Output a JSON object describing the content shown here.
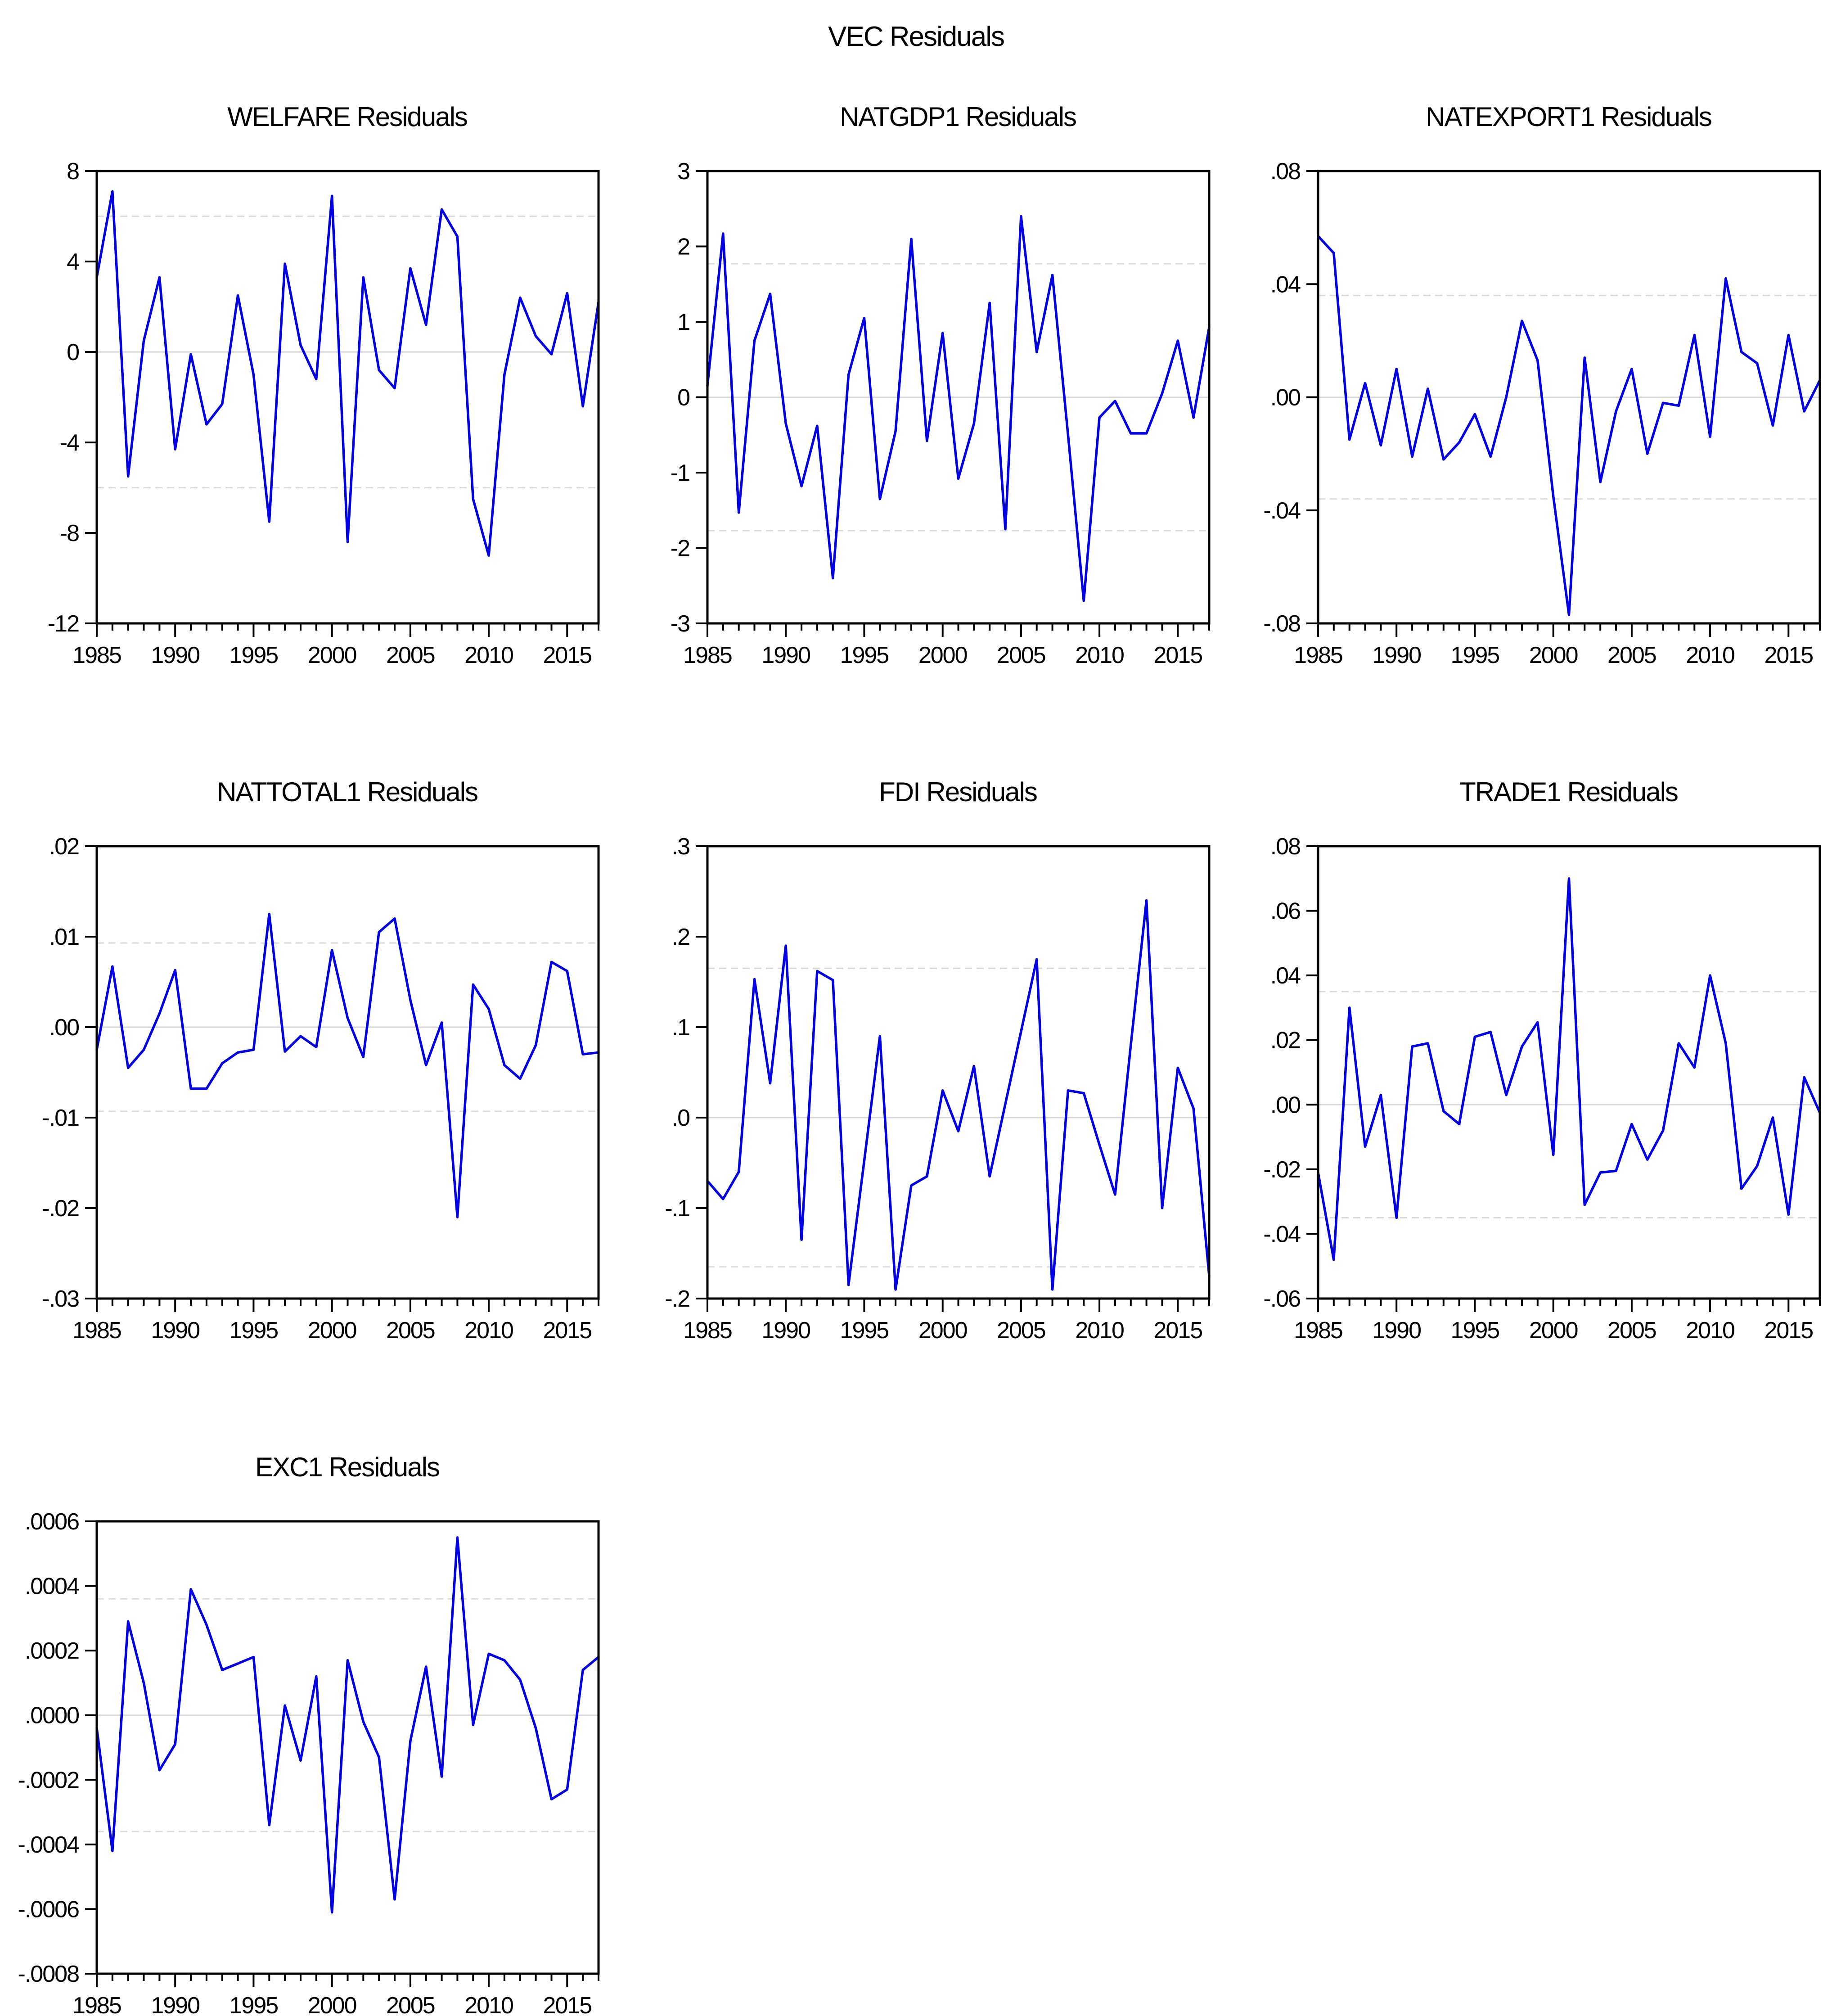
{
  "title": "VEC Residuals",
  "colors": {
    "line": "#0000E8",
    "gridline": "#D6D6D6",
    "band_dashed": "#DADADA",
    "axis": "#000000",
    "background": "#FFFFFF"
  },
  "chart_data": [
    {
      "type": "line",
      "title": "WELFARE Residuals",
      "x_start": 1985,
      "x_end": 2017,
      "ylim": [
        -12,
        8
      ],
      "band": 6.0,
      "grid": {
        "zero_line": true,
        "dashed_bands": true
      },
      "yticks": [
        {
          "v": 8,
          "t": "8"
        },
        {
          "v": 4,
          "t": "4"
        },
        {
          "v": 0,
          "t": "0"
        },
        {
          "v": -4,
          "t": "-4"
        },
        {
          "v": -8,
          "t": "-8"
        },
        {
          "v": -12,
          "t": "-12"
        }
      ],
      "xticks": [
        {
          "v": 1985,
          "t": "1985"
        },
        {
          "v": 1990,
          "t": "1990"
        },
        {
          "v": 1995,
          "t": "1995"
        },
        {
          "v": 2000,
          "t": "2000"
        },
        {
          "v": 2005,
          "t": "2005"
        },
        {
          "v": 2010,
          "t": "2010"
        },
        {
          "v": 2015,
          "t": "2015"
        }
      ],
      "values": [
        3.3,
        7.1,
        -5.5,
        0.5,
        3.3,
        -4.3,
        -0.1,
        -3.2,
        -2.3,
        2.5,
        -1.0,
        -7.5,
        3.9,
        0.3,
        -1.2,
        6.9,
        -8.4,
        3.3,
        -0.8,
        -1.6,
        3.7,
        1.2,
        6.3,
        5.1,
        -6.5,
        -9.0,
        -1.0,
        2.4,
        0.7,
        -0.1,
        2.6,
        -2.4,
        2.2
      ]
    },
    {
      "type": "line",
      "title": "NATGDP1 Residuals",
      "x_start": 1985,
      "x_end": 2017,
      "ylim": [
        -3,
        3
      ],
      "band": 1.77,
      "grid": {
        "zero_line": true,
        "dashed_bands": true
      },
      "yticks": [
        {
          "v": 3,
          "t": "3"
        },
        {
          "v": 2,
          "t": "2"
        },
        {
          "v": 1,
          "t": "1"
        },
        {
          "v": 0,
          "t": "0"
        },
        {
          "v": -1,
          "t": "-1"
        },
        {
          "v": -2,
          "t": "-2"
        },
        {
          "v": -3,
          "t": "-3"
        }
      ],
      "xticks": [
        {
          "v": 1985,
          "t": "1985"
        },
        {
          "v": 1990,
          "t": "1990"
        },
        {
          "v": 1995,
          "t": "1995"
        },
        {
          "v": 2000,
          "t": "2000"
        },
        {
          "v": 2005,
          "t": "2005"
        },
        {
          "v": 2010,
          "t": "2010"
        },
        {
          "v": 2015,
          "t": "2015"
        }
      ],
      "values": [
        0.15,
        2.17,
        -1.53,
        0.75,
        1.37,
        -0.35,
        -1.18,
        -0.38,
        -2.4,
        0.3,
        1.05,
        -1.35,
        -0.45,
        2.1,
        -0.58,
        0.85,
        -1.08,
        -0.35,
        1.25,
        -1.75,
        2.4,
        0.6,
        1.62,
        -0.5,
        -2.7,
        -0.27,
        -0.05,
        -0.48,
        -0.48,
        0.05,
        0.75,
        -0.27,
        0.93
      ]
    },
    {
      "type": "line",
      "title": "NATEXPORT1 Residuals",
      "x_start": 1985,
      "x_end": 2017,
      "ylim": [
        -0.08,
        0.08
      ],
      "band": 0.036,
      "grid": {
        "zero_line": true,
        "dashed_bands": true
      },
      "yticks": [
        {
          "v": 0.08,
          "t": ".08"
        },
        {
          "v": 0.04,
          "t": ".04"
        },
        {
          "v": 0.0,
          "t": ".00"
        },
        {
          "v": -0.04,
          "t": "-.04"
        },
        {
          "v": -0.08,
          "t": "-.08"
        }
      ],
      "xticks": [
        {
          "v": 1985,
          "t": "1985"
        },
        {
          "v": 1990,
          "t": "1990"
        },
        {
          "v": 1995,
          "t": "1995"
        },
        {
          "v": 2000,
          "t": "2000"
        },
        {
          "v": 2005,
          "t": "2005"
        },
        {
          "v": 2010,
          "t": "2010"
        },
        {
          "v": 2015,
          "t": "2015"
        }
      ],
      "values": [
        0.057,
        0.051,
        -0.015,
        0.005,
        -0.017,
        0.01,
        -0.021,
        0.003,
        -0.022,
        -0.016,
        -0.006,
        -0.021,
        0.0,
        0.027,
        0.013,
        -0.035,
        -0.077,
        0.014,
        -0.03,
        -0.005,
        0.01,
        -0.02,
        -0.002,
        -0.003,
        0.022,
        -0.014,
        0.042,
        0.016,
        0.012,
        -0.01,
        0.022,
        -0.005,
        0.006
      ]
    },
    {
      "type": "line",
      "title": "NATTOTAL1 Residuals",
      "x_start": 1985,
      "x_end": 2017,
      "ylim": [
        -0.03,
        0.02
      ],
      "band": 0.0093,
      "grid": {
        "zero_line": true,
        "dashed_bands": true
      },
      "yticks": [
        {
          "v": 0.02,
          "t": ".02"
        },
        {
          "v": 0.01,
          "t": ".01"
        },
        {
          "v": 0.0,
          "t": ".00"
        },
        {
          "v": -0.01,
          "t": "-.01"
        },
        {
          "v": -0.02,
          "t": "-.02"
        },
        {
          "v": -0.03,
          "t": "-.03"
        }
      ],
      "xticks": [
        {
          "v": 1985,
          "t": "1985"
        },
        {
          "v": 1990,
          "t": "1990"
        },
        {
          "v": 1995,
          "t": "1995"
        },
        {
          "v": 2000,
          "t": "2000"
        },
        {
          "v": 2005,
          "t": "2005"
        },
        {
          "v": 2010,
          "t": "2010"
        },
        {
          "v": 2015,
          "t": "2015"
        }
      ],
      "values": [
        -0.0025,
        0.0067,
        -0.0045,
        -0.0025,
        0.0015,
        0.0063,
        -0.0068,
        -0.0068,
        -0.004,
        -0.0028,
        -0.0025,
        0.0125,
        -0.0027,
        -0.001,
        -0.0022,
        0.0085,
        0.001,
        -0.0033,
        0.0105,
        0.012,
        0.003,
        -0.0042,
        0.0005,
        -0.021,
        0.0047,
        0.002,
        -0.0042,
        -0.0057,
        -0.002,
        0.0072,
        0.0062,
        -0.003,
        -0.0028
      ]
    },
    {
      "type": "line",
      "title": "FDI Residuals",
      "x_start": 1985,
      "x_end": 2017,
      "ylim": [
        -0.2,
        0.3
      ],
      "band": 0.165,
      "grid": {
        "zero_line": true,
        "dashed_bands": true
      },
      "yticks": [
        {
          "v": 0.3,
          "t": ".3"
        },
        {
          "v": 0.2,
          "t": ".2"
        },
        {
          "v": 0.1,
          "t": ".1"
        },
        {
          "v": 0.0,
          "t": ".0"
        },
        {
          "v": -0.1,
          "t": "-.1"
        },
        {
          "v": -0.2,
          "t": "-.2"
        }
      ],
      "xticks": [
        {
          "v": 1985,
          "t": "1985"
        },
        {
          "v": 1990,
          "t": "1990"
        },
        {
          "v": 1995,
          "t": "1995"
        },
        {
          "v": 2000,
          "t": "2000"
        },
        {
          "v": 2005,
          "t": "2005"
        },
        {
          "v": 2010,
          "t": "2010"
        },
        {
          "v": 2015,
          "t": "2015"
        }
      ],
      "values": [
        -0.07,
        -0.09,
        -0.06,
        0.153,
        0.038,
        0.19,
        -0.135,
        0.162,
        0.152,
        -0.185,
        -0.048,
        0.09,
        -0.19,
        -0.075,
        -0.065,
        0.03,
        -0.015,
        0.057,
        -0.065,
        0.015,
        0.095,
        0.175,
        -0.19,
        0.03,
        0.027,
        -0.03,
        -0.085,
        0.08,
        0.24,
        -0.1,
        0.055,
        0.01,
        -0.175
      ]
    },
    {
      "type": "line",
      "title": "TRADE1 Residuals",
      "x_start": 1985,
      "x_end": 2017,
      "ylim": [
        -0.06,
        0.08
      ],
      "band": 0.035,
      "grid": {
        "zero_line": true,
        "dashed_bands": true
      },
      "yticks": [
        {
          "v": 0.08,
          "t": ".08"
        },
        {
          "v": 0.06,
          "t": ".06"
        },
        {
          "v": 0.04,
          "t": ".04"
        },
        {
          "v": 0.02,
          "t": ".02"
        },
        {
          "v": 0.0,
          "t": ".00"
        },
        {
          "v": -0.02,
          "t": "-.02"
        },
        {
          "v": -0.04,
          "t": "-.04"
        },
        {
          "v": -0.06,
          "t": "-.06"
        }
      ],
      "xticks": [
        {
          "v": 1985,
          "t": "1985"
        },
        {
          "v": 1990,
          "t": "1990"
        },
        {
          "v": 1995,
          "t": "1995"
        },
        {
          "v": 2000,
          "t": "2000"
        },
        {
          "v": 2005,
          "t": "2005"
        },
        {
          "v": 2010,
          "t": "2010"
        },
        {
          "v": 2015,
          "t": "2015"
        }
      ],
      "values": [
        -0.021,
        -0.048,
        0.03,
        -0.013,
        0.003,
        -0.035,
        0.018,
        0.019,
        -0.002,
        -0.006,
        0.021,
        0.0225,
        0.003,
        0.018,
        0.0255,
        -0.0155,
        0.07,
        -0.031,
        -0.021,
        -0.0205,
        -0.006,
        -0.017,
        -0.008,
        0.019,
        0.0115,
        0.04,
        0.019,
        -0.026,
        -0.019,
        -0.004,
        -0.034,
        0.0085,
        -0.0025
      ]
    },
    {
      "type": "line",
      "title": "EXC1 Residuals",
      "x_start": 1985,
      "x_end": 2017,
      "ylim": [
        -0.0008,
        0.0006
      ],
      "band": 0.00036,
      "grid": {
        "zero_line": true,
        "dashed_bands": true
      },
      "yticks": [
        {
          "v": 0.0006,
          "t": ".0006"
        },
        {
          "v": 0.0004,
          "t": ".0004"
        },
        {
          "v": 0.0002,
          "t": ".0002"
        },
        {
          "v": 0.0,
          "t": ".0000"
        },
        {
          "v": -0.0002,
          "t": "-.0002"
        },
        {
          "v": -0.0004,
          "t": "-.0004"
        },
        {
          "v": -0.0006,
          "t": "-.0006"
        },
        {
          "v": -0.0008,
          "t": "-.0008"
        }
      ],
      "xticks": [
        {
          "v": 1985,
          "t": "1985"
        },
        {
          "v": 1990,
          "t": "1990"
        },
        {
          "v": 1995,
          "t": "1995"
        },
        {
          "v": 2000,
          "t": "2000"
        },
        {
          "v": 2005,
          "t": "2005"
        },
        {
          "v": 2010,
          "t": "2010"
        },
        {
          "v": 2015,
          "t": "2015"
        }
      ],
      "values": [
        -4e-05,
        -0.00042,
        0.00029,
        0.0001,
        -0.00017,
        -9e-05,
        0.00039,
        0.00028,
        0.00014,
        0.00016,
        0.00018,
        -0.00034,
        3e-05,
        -0.00014,
        0.00012,
        -0.00061,
        0.00017,
        -2e-05,
        -0.00013,
        -0.00057,
        -8e-05,
        0.00015,
        -0.00019,
        0.00055,
        -3e-05,
        0.00019,
        0.00017,
        0.00011,
        -4e-05,
        -0.00026,
        -0.00023,
        0.00014,
        0.00018
      ]
    }
  ]
}
